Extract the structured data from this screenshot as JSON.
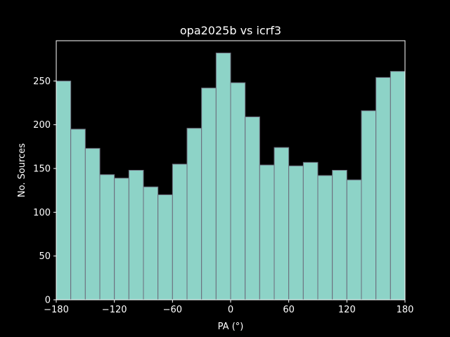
{
  "chart_data": {
    "type": "bar",
    "title": "opa2025b vs icrf3",
    "xlabel": "PA ($^\\circ$)",
    "xlabel_display": "PA (°)",
    "ylabel": "No. Sources",
    "bin_edges": [
      -180,
      -165,
      -150,
      -135,
      -120,
      -105,
      -90,
      -75,
      -60,
      -45,
      -30,
      -15,
      0,
      15,
      30,
      45,
      60,
      75,
      90,
      105,
      120,
      135,
      150,
      165,
      180
    ],
    "values": [
      250,
      195,
      173,
      143,
      139,
      148,
      129,
      120,
      155,
      196,
      242,
      282,
      248,
      209,
      154,
      174,
      153,
      157,
      142,
      148,
      137,
      216,
      254,
      261
    ],
    "xlim": [
      -180,
      180
    ],
    "ylim": [
      0,
      296
    ],
    "xticks": [
      -180,
      -120,
      -60,
      0,
      60,
      120,
      180
    ],
    "xtick_labels": [
      "−180",
      "−120",
      "−60",
      "0",
      "60",
      "120",
      "180"
    ],
    "yticks": [
      0,
      50,
      100,
      150,
      200,
      250
    ],
    "ytick_labels": [
      "0",
      "50",
      "100",
      "150",
      "200",
      "250"
    ],
    "grid": false,
    "colors": {
      "background": "#000000",
      "bar_fill": "#8dd3c7",
      "bar_edge": "#6b6b7b",
      "axes": "#ffffff",
      "text": "#ffffff"
    }
  }
}
